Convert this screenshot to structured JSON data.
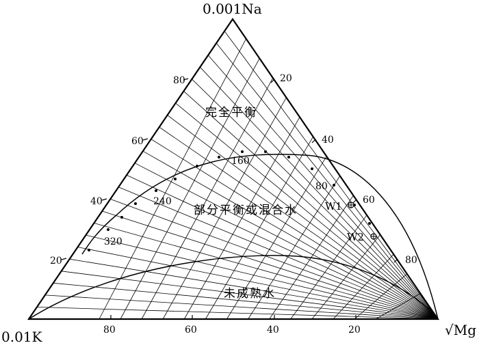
{
  "corners": {
    "top": "0.001Na",
    "left": "0.01K",
    "right": "√Mg"
  },
  "axes": {
    "left_edge_ticks": [
      "20",
      "40",
      "60",
      "80"
    ],
    "right_edge_ticks": [
      "20",
      "40",
      "60",
      "80"
    ],
    "bottom_edge_ticks": [
      "80",
      "60",
      "40",
      "20"
    ]
  },
  "regions": {
    "full_equilibrium": "完全平衡",
    "partial_equilibrium": "部分平衡或混合水",
    "immature": "未成熟水"
  },
  "temperature_labels": [
    "80",
    "160",
    "240",
    "320"
  ],
  "samples": [
    {
      "name": "W1",
      "label": "W1"
    },
    {
      "name": "W2",
      "label": "W2"
    }
  ]
}
